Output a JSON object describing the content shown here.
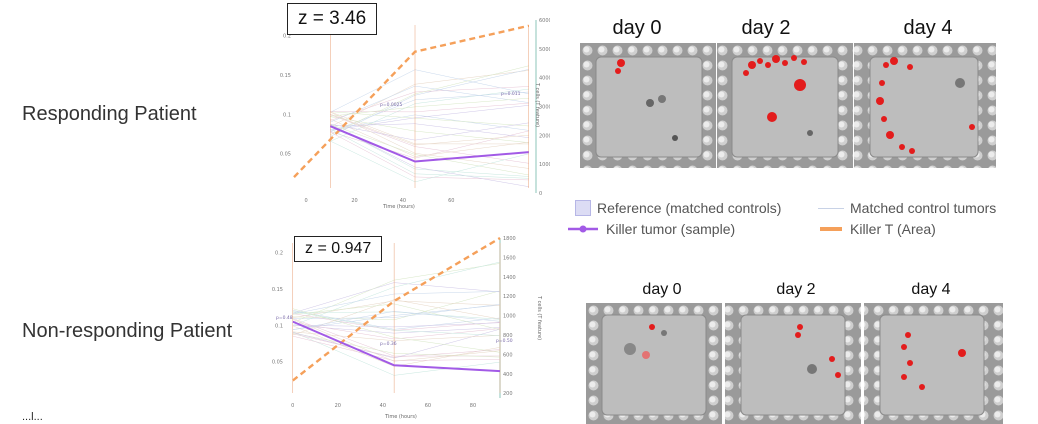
{
  "patients": [
    {
      "label": "Responding Patient",
      "z_label": "z = 3.46"
    },
    {
      "label": "Non-responding Patient",
      "z_label": "z = 0.947"
    }
  ],
  "legend": {
    "reference": "Reference (matched controls)",
    "matched": "Matched control tumors",
    "killer_tumor": "Killer tumor (sample)",
    "killer_t": "Killer T (Area)"
  },
  "colors": {
    "killer_tumor": "#a25ae6",
    "killer_t": "#f5a05a",
    "reference": "#c9c9ee",
    "matched": "#cfd8ea"
  },
  "image_rows": [
    {
      "days": [
        "day 0",
        "day 2",
        "day 4"
      ]
    },
    {
      "days": [
        "day 0",
        "day 2",
        "day 4"
      ]
    }
  ],
  "cutoff_text": "...l...",
  "chart_data": [
    {
      "type": "line",
      "xlabel": "Time (hours)",
      "ylabel_right": "T cells (T feature)",
      "x_ticks": [
        "0",
        "20",
        "40",
        "60"
      ],
      "y_ticks_left": [
        "0.05",
        "0.1",
        "0.15",
        "0.2"
      ],
      "y_ticks_right": [
        "0",
        "1000",
        "2000",
        "3000",
        "4000",
        "5000",
        "6000"
      ],
      "xlim": [
        -5,
        95
      ],
      "ylim_left": [
        0,
        0.22
      ],
      "ylim_right": [
        0,
        6000
      ],
      "annotations": [
        "p=0.0025",
        "p=0.011"
      ],
      "series": [
        {
          "name": "Killer tumor (sample)",
          "axis": "left",
          "x": [
            10,
            45,
            92
          ],
          "y": [
            0.085,
            0.04,
            0.052
          ]
        },
        {
          "name": "Killer T (Area)",
          "axis": "right",
          "x": [
            -5,
            45,
            92
          ],
          "y": [
            550,
            4900,
            5800
          ]
        }
      ]
    },
    {
      "type": "line",
      "xlabel": "Time (hours)",
      "ylabel_right": "T cells (T feature)",
      "x_ticks": [
        "0",
        "20",
        "40",
        "60",
        "80"
      ],
      "y_ticks_left": [
        "0.05",
        "0.1",
        "0.15",
        "0.2"
      ],
      "y_ticks_right": [
        "200",
        "400",
        "600",
        "800",
        "1000",
        "1200",
        "1400",
        "1600",
        "1800"
      ],
      "xlim": [
        -3,
        92
      ],
      "ylim_left": [
        0,
        0.22
      ],
      "ylim_right": [
        150,
        1800
      ],
      "annotations": [
        "p=0.48",
        "p=0.36",
        "p=0.50"
      ],
      "series": [
        {
          "name": "Killer tumor (sample)",
          "axis": "left",
          "x": [
            0,
            45,
            92
          ],
          "y": [
            0.105,
            0.045,
            0.037
          ]
        },
        {
          "name": "Killer T (Area)",
          "axis": "right",
          "x": [
            0,
            45,
            92
          ],
          "y": [
            330,
            1150,
            1800
          ]
        }
      ]
    }
  ]
}
